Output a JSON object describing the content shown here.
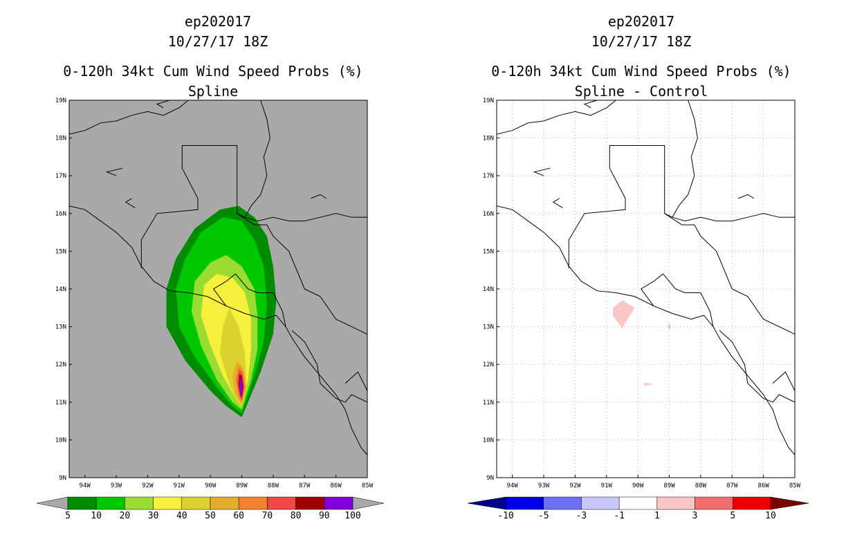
{
  "panels": [
    {
      "storm": "ep202017",
      "datetime": "10/27/17 18Z",
      "product": "0-120h 34kt Cum Wind Speed Probs (%)",
      "subtitle": "Spline",
      "background": "#a9a9a9",
      "grid": false
    },
    {
      "storm": "ep202017",
      "datetime": "10/27/17 18Z",
      "product": "0-120h 34kt Cum Wind Speed Probs (%)",
      "subtitle": "Spline - Control",
      "background": "#ffffff",
      "grid": true
    }
  ],
  "chart_data": [
    {
      "type": "heatmap",
      "title": "0-120h 34kt Cum Wind Speed Probs (%)",
      "subtitle": "Spline",
      "x_range_deg_lon": [
        -94.5,
        -85
      ],
      "y_range_deg_lat": [
        9,
        19
      ],
      "x_tick_values": [
        -94,
        -93,
        -92,
        -91,
        -90,
        -89,
        -88,
        -87,
        -86,
        -85
      ],
      "x_tick_labels": [
        "94W",
        "93W",
        "92W",
        "91W",
        "90W",
        "89W",
        "88W",
        "87W",
        "86W",
        "85W"
      ],
      "y_tick_values": [
        9,
        10,
        11,
        12,
        13,
        14,
        15,
        16,
        17,
        18,
        19
      ],
      "y_tick_labels": [
        "9N",
        "10N",
        "11N",
        "12N",
        "13N",
        "14N",
        "15N",
        "16N",
        "17N",
        "18N",
        "19N"
      ],
      "colorbar": {
        "labels": [
          "5",
          "10",
          "20",
          "30",
          "40",
          "50",
          "60",
          "70",
          "80",
          "90",
          "100"
        ],
        "colors": [
          "#008c00",
          "#00c800",
          "#9bdc32",
          "#f5f03c",
          "#dcd22d",
          "#e6ac2d",
          "#f0822d",
          "#f04646",
          "#a00000",
          "#8200dc"
        ],
        "low_arrow_color": "#a9a9a9",
        "high_arrow_color": "#a9a9a9"
      },
      "contours": [
        {
          "level": 5,
          "color": "#008c00",
          "points": [
            [
              -89,
              10.6
            ],
            [
              -88.4,
              11.8
            ],
            [
              -88.0,
              12.8
            ],
            [
              -87.9,
              13.7
            ],
            [
              -88.0,
              14.6
            ],
            [
              -88.2,
              15.4
            ],
            [
              -88.6,
              15.9
            ],
            [
              -89.1,
              16.2
            ],
            [
              -89.7,
              16.1
            ],
            [
              -90.5,
              15.6
            ],
            [
              -91.1,
              14.8
            ],
            [
              -91.4,
              14.0
            ],
            [
              -91.4,
              13.0
            ],
            [
              -90.8,
              12.1
            ],
            [
              -90.0,
              11.3
            ],
            [
              -89.5,
              10.9
            ]
          ]
        },
        {
          "level": 10,
          "color": "#00c800",
          "points": [
            [
              -89,
              10.7
            ],
            [
              -88.6,
              11.7
            ],
            [
              -88.3,
              12.6
            ],
            [
              -88.2,
              13.6
            ],
            [
              -88.3,
              14.6
            ],
            [
              -88.6,
              15.3
            ],
            [
              -89.0,
              15.8
            ],
            [
              -89.6,
              15.9
            ],
            [
              -90.3,
              15.5
            ],
            [
              -90.8,
              14.8
            ],
            [
              -91.1,
              14.0
            ],
            [
              -91.0,
              13.0
            ],
            [
              -90.5,
              12.2
            ],
            [
              -89.8,
              11.4
            ],
            [
              -89.3,
              10.9
            ]
          ]
        },
        {
          "level": 20,
          "color": "#9bdc32",
          "points": [
            [
              -89,
              10.8
            ],
            [
              -88.7,
              11.6
            ],
            [
              -88.5,
              12.4
            ],
            [
              -88.5,
              13.3
            ],
            [
              -88.6,
              14.0
            ],
            [
              -89.0,
              14.6
            ],
            [
              -89.5,
              14.9
            ],
            [
              -90.0,
              14.7
            ],
            [
              -90.5,
              14.2
            ],
            [
              -90.6,
              13.4
            ],
            [
              -90.3,
              12.5
            ],
            [
              -89.8,
              11.6
            ],
            [
              -89.3,
              11.0
            ]
          ]
        },
        {
          "level": 30,
          "color": "#f5f03c",
          "points": [
            [
              -89,
              10.9
            ],
            [
              -88.8,
              11.6
            ],
            [
              -88.7,
              12.4
            ],
            [
              -88.7,
              13.2
            ],
            [
              -88.9,
              13.9
            ],
            [
              -89.3,
              14.3
            ],
            [
              -89.8,
              14.4
            ],
            [
              -90.2,
              14.1
            ],
            [
              -90.3,
              13.3
            ],
            [
              -90.0,
              12.5
            ],
            [
              -89.6,
              11.7
            ],
            [
              -89.2,
              11.1
            ]
          ]
        },
        {
          "level": 40,
          "color": "#dcd22d",
          "points": [
            [
              -89,
              10.9
            ],
            [
              -88.85,
              11.5
            ],
            [
              -88.9,
              12.3
            ],
            [
              -89.1,
              13.0
            ],
            [
              -89.4,
              13.5
            ],
            [
              -89.6,
              13.0
            ],
            [
              -89.7,
              12.3
            ],
            [
              -89.4,
              11.5
            ],
            [
              -89.15,
              11.0
            ]
          ]
        },
        {
          "level": 50,
          "color": "#e6ac2d",
          "points": [
            [
              -89,
              10.95
            ],
            [
              -88.85,
              11.4
            ],
            [
              -88.95,
              11.9
            ],
            [
              -89.15,
              12.1
            ],
            [
              -89.3,
              11.7
            ],
            [
              -89.2,
              11.2
            ]
          ]
        },
        {
          "level": 60,
          "color": "#f0822d",
          "points": [
            [
              -89,
              11.0
            ],
            [
              -88.9,
              11.4
            ],
            [
              -88.95,
              11.8
            ],
            [
              -89.1,
              11.95
            ],
            [
              -89.2,
              11.6
            ],
            [
              -89.1,
              11.15
            ]
          ]
        },
        {
          "level": 70,
          "color": "#f04646",
          "points": [
            [
              -89,
              11.05
            ],
            [
              -88.92,
              11.4
            ],
            [
              -88.98,
              11.75
            ],
            [
              -89.08,
              11.85
            ],
            [
              -89.15,
              11.55
            ],
            [
              -89.08,
              11.2
            ]
          ]
        },
        {
          "level": 80,
          "color": "#a00000",
          "points": [
            [
              -89,
              11.1
            ],
            [
              -88.95,
              11.4
            ],
            [
              -89.0,
              11.7
            ],
            [
              -89.08,
              11.75
            ],
            [
              -89.1,
              11.45
            ],
            [
              -89.05,
              11.2
            ]
          ]
        },
        {
          "level": 90,
          "color": "#8200dc",
          "points": [
            [
              -89,
              11.15
            ],
            [
              -88.98,
              11.4
            ],
            [
              -89.02,
              11.62
            ],
            [
              -89.07,
              11.6
            ],
            [
              -89.07,
              11.35
            ],
            [
              -89.03,
              11.2
            ]
          ]
        }
      ]
    },
    {
      "type": "heatmap",
      "title": "0-120h 34kt Cum Wind Speed Probs (%)",
      "subtitle": "Spline - Control",
      "x_range_deg_lon": [
        -94.5,
        -85
      ],
      "y_range_deg_lat": [
        9,
        19
      ],
      "x_tick_values": [
        -94,
        -93,
        -92,
        -91,
        -90,
        -89,
        -88,
        -87,
        -86,
        -85
      ],
      "x_tick_labels": [
        "94W",
        "93W",
        "92W",
        "91W",
        "90W",
        "89W",
        "88W",
        "87W",
        "86W",
        "85W"
      ],
      "y_tick_values": [
        9,
        10,
        11,
        12,
        13,
        14,
        15,
        16,
        17,
        18,
        19
      ],
      "y_tick_labels": [
        "9N",
        "10N",
        "11N",
        "12N",
        "13N",
        "14N",
        "15N",
        "16N",
        "17N",
        "18N",
        "19N"
      ],
      "colorbar": {
        "labels": [
          "-10",
          "-5",
          "-3",
          "-1",
          "1",
          "3",
          "5",
          "10"
        ],
        "colors": [
          "#0000e6",
          "#6e6ef0",
          "#c8c8f8",
          "#ffffff",
          "#f8c8c8",
          "#f07070",
          "#ee0000"
        ],
        "low_arrow_color": "#00008c",
        "high_arrow_color": "#780000"
      },
      "contours": [
        {
          "level": 1,
          "color": "#f8c8c8",
          "points": [
            [
              -90.8,
              13.5
            ],
            [
              -90.5,
              13.7
            ],
            [
              -90.1,
              13.5
            ],
            [
              -90.4,
              13.1
            ],
            [
              -90.5,
              12.95
            ],
            [
              -90.8,
              13.3
            ]
          ]
        },
        {
          "level": 1,
          "color": "#f8c8c8",
          "points": [
            [
              -89.8,
              11.52
            ],
            [
              -89.5,
              11.48
            ],
            [
              -89.8,
              11.44
            ]
          ]
        },
        {
          "level": -1,
          "color": "#c8c8f8",
          "points": [
            [
              -89.0,
              13.1
            ],
            [
              -88.95,
              13.0
            ],
            [
              -89.0,
              12.9
            ],
            [
              -89.05,
              13.0
            ]
          ]
        }
      ]
    }
  ],
  "map": {
    "coastlines_and_borders": [
      [
        [
          -94.5,
          18.1
        ],
        [
          -94.0,
          18.2
        ],
        [
          -93.5,
          18.4
        ],
        [
          -93.0,
          18.45
        ],
        [
          -92.5,
          18.6
        ],
        [
          -92.0,
          18.7
        ],
        [
          -91.5,
          18.6
        ],
        [
          -91.0,
          18.8
        ],
        [
          -90.7,
          19.0
        ]
      ],
      [
        [
          -88.4,
          19.0
        ],
        [
          -88.2,
          18.5
        ],
        [
          -88.1,
          18.0
        ],
        [
          -88.3,
          17.5
        ],
        [
          -88.2,
          17.0
        ],
        [
          -88.4,
          16.5
        ],
        [
          -88.7,
          16.2
        ],
        [
          -88.9,
          15.9
        ]
      ],
      [
        [
          -88.9,
          15.9
        ],
        [
          -88.5,
          15.8
        ],
        [
          -88.0,
          15.9
        ],
        [
          -87.5,
          15.8
        ],
        [
          -87.0,
          15.8
        ],
        [
          -86.5,
          15.9
        ],
        [
          -86.0,
          16.0
        ],
        [
          -85.5,
          15.9
        ],
        [
          -85.0,
          15.9
        ]
      ],
      [
        [
          -94.5,
          16.2
        ],
        [
          -94.0,
          16.1
        ],
        [
          -93.5,
          15.8
        ],
        [
          -93.0,
          15.5
        ],
        [
          -92.5,
          15.1
        ],
        [
          -92.2,
          14.6
        ],
        [
          -91.8,
          14.2
        ],
        [
          -91.3,
          13.95
        ],
        [
          -90.7,
          13.9
        ],
        [
          -90.1,
          13.8
        ],
        [
          -89.5,
          13.55
        ],
        [
          -88.9,
          13.35
        ],
        [
          -88.3,
          13.2
        ],
        [
          -87.9,
          13.3
        ],
        [
          -87.6,
          13.0
        ],
        [
          -87.4,
          12.7
        ],
        [
          -87.0,
          12.2
        ],
        [
          -86.5,
          11.7
        ],
        [
          -86.0,
          11.2
        ],
        [
          -85.7,
          10.8
        ],
        [
          -85.5,
          10.3
        ],
        [
          -85.2,
          9.8
        ],
        [
          -85.0,
          9.6
        ]
      ],
      [
        [
          -92.2,
          14.55
        ],
        [
          -92.2,
          15.3
        ],
        [
          -91.7,
          16.0
        ],
        [
          -90.4,
          16.1
        ],
        [
          -90.4,
          16.4
        ],
        [
          -90.9,
          17.2
        ],
        [
          -90.9,
          17.8
        ],
        [
          -89.15,
          17.8
        ],
        [
          -89.15,
          16.0
        ],
        [
          -88.9,
          15.9
        ]
      ],
      [
        [
          -89.2,
          14.4
        ],
        [
          -89.5,
          14.2
        ],
        [
          -89.9,
          14.0
        ],
        [
          -89.5,
          13.55
        ]
      ],
      [
        [
          -89.2,
          14.4
        ],
        [
          -88.8,
          14.0
        ],
        [
          -88.5,
          13.9
        ],
        [
          -88.0,
          13.9
        ],
        [
          -87.7,
          13.4
        ],
        [
          -87.6,
          13.0
        ]
      ],
      [
        [
          -89.15,
          16.0
        ],
        [
          -88.6,
          15.7
        ],
        [
          -88.2,
          15.7
        ],
        [
          -88.0,
          15.4
        ],
        [
          -87.5,
          15.0
        ],
        [
          -87.0,
          14.0
        ],
        [
          -86.5,
          13.8
        ],
        [
          -86.0,
          13.2
        ],
        [
          -85.5,
          13.0
        ],
        [
          -85.0,
          12.8
        ]
      ],
      [
        [
          -87.4,
          12.9
        ],
        [
          -87.0,
          12.6
        ],
        [
          -86.6,
          12.0
        ],
        [
          -86.5,
          11.5
        ],
        [
          -86.0,
          11.1
        ],
        [
          -85.7,
          11.0
        ],
        [
          -85.5,
          11.2
        ],
        [
          -85.0,
          11.0
        ]
      ],
      [
        [
          -85.7,
          11.5
        ],
        [
          -85.3,
          11.8
        ],
        [
          -85.0,
          11.3
        ]
      ],
      [
        [
          -92.5,
          16.4
        ],
        [
          -92.7,
          16.3
        ],
        [
          -92.4,
          16.15
        ]
      ],
      [
        [
          -93.0,
          17.0
        ],
        [
          -93.3,
          17.1
        ],
        [
          -92.8,
          17.2
        ]
      ],
      [
        [
          -91.5,
          18.8
        ],
        [
          -91.7,
          18.9
        ],
        [
          -91.3,
          19.0
        ]
      ],
      [
        [
          -86.8,
          16.4
        ],
        [
          -86.5,
          16.5
        ],
        [
          -86.3,
          16.4
        ]
      ]
    ]
  }
}
